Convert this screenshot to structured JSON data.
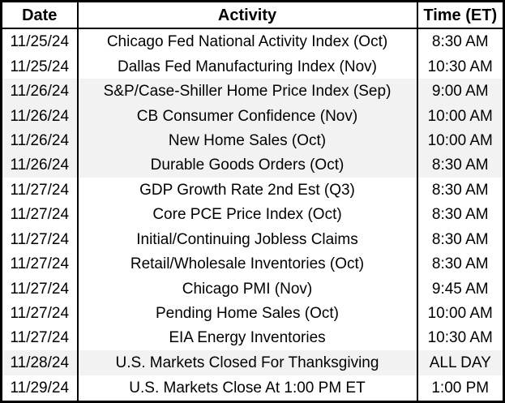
{
  "table": {
    "headers": [
      "Date",
      "Activity",
      "Time (ET)"
    ],
    "rows": [
      {
        "date": "11/25/24",
        "activity": "Chicago Fed National Activity Index (Oct)",
        "time": "8:30 AM",
        "shaded": false
      },
      {
        "date": "11/25/24",
        "activity": "Dallas Fed Manufacturing Index (Nov)",
        "time": "10:30 AM",
        "shaded": false
      },
      {
        "date": "11/26/24",
        "activity": "S&P/Case-Shiller Home Price Index (Sep)",
        "time": "9:00 AM",
        "shaded": true
      },
      {
        "date": "11/26/24",
        "activity": "CB Consumer Confidence (Nov)",
        "time": "10:00 AM",
        "shaded": true
      },
      {
        "date": "11/26/24",
        "activity": "New Home Sales (Oct)",
        "time": "10:00 AM",
        "shaded": true
      },
      {
        "date": "11/26/24",
        "activity": "Durable Goods Orders (Oct)",
        "time": "8:30 AM",
        "shaded": true
      },
      {
        "date": "11/27/24",
        "activity": "GDP Growth Rate 2nd Est (Q3)",
        "time": "8:30 AM",
        "shaded": false
      },
      {
        "date": "11/27/24",
        "activity": "Core PCE Price Index (Oct)",
        "time": "8:30 AM",
        "shaded": false
      },
      {
        "date": "11/27/24",
        "activity": "Initial/Continuing Jobless Claims",
        "time": "8:30 AM",
        "shaded": false
      },
      {
        "date": "11/27/24",
        "activity": "Retail/Wholesale Inventories (Oct)",
        "time": "8:30 AM",
        "shaded": false
      },
      {
        "date": "11/27/24",
        "activity": "Chicago PMI (Nov)",
        "time": "9:45 AM",
        "shaded": false
      },
      {
        "date": "11/27/24",
        "activity": "Pending Home Sales (Oct)",
        "time": "10:00 AM",
        "shaded": false
      },
      {
        "date": "11/27/24",
        "activity": "EIA Energy Inventories",
        "time": "10:30 AM",
        "shaded": false
      },
      {
        "date": "11/28/24",
        "activity": "U.S. Markets Closed For Thanksgiving",
        "time": "ALL DAY",
        "shaded": true
      },
      {
        "date": "11/29/24",
        "activity": "U.S. Markets Close At 1:00 PM ET",
        "time": "1:00 PM",
        "shaded": false
      }
    ],
    "colors": {
      "shaded_row_bg": "#f2f2f2",
      "row_bg": "#ffffff",
      "border": "#000000",
      "text": "#000000"
    }
  }
}
